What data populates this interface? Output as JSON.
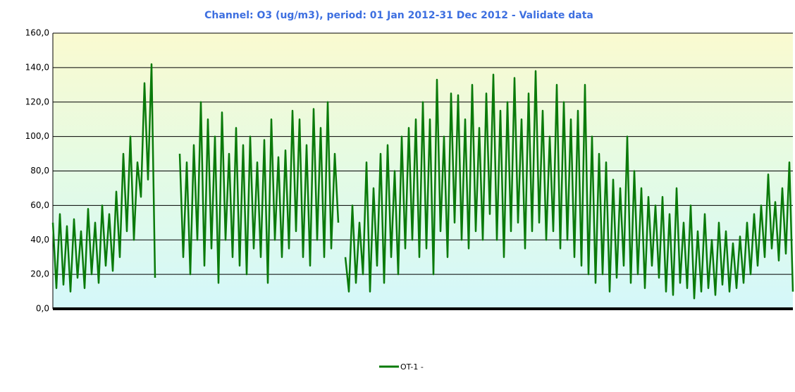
{
  "chart_data": {
    "type": "line",
    "title": "Channel: O3 (ug/m3), period: 01 Jan 2012-31 Dec 2012 - Validate data",
    "ylim": [
      0,
      160
    ],
    "yticks": [
      {
        "value": 0,
        "label": "0,0"
      },
      {
        "value": 20,
        "label": "20,0"
      },
      {
        "value": 40,
        "label": "40,0"
      },
      {
        "value": 60,
        "label": "60,0"
      },
      {
        "value": 80,
        "label": "80,0"
      },
      {
        "value": 100,
        "label": "100,0"
      },
      {
        "value": 120,
        "label": "120,0"
      },
      {
        "value": 140,
        "label": "140,0"
      },
      {
        "value": 160,
        "label": "160,0"
      }
    ],
    "grid": true,
    "legend": "bottom",
    "series": [
      {
        "name": "OT-1 -",
        "color": "#0a7a0a",
        "values": [
          50,
          12,
          55,
          14,
          48,
          10,
          52,
          18,
          45,
          12,
          58,
          20,
          50,
          15,
          60,
          25,
          55,
          22,
          68,
          30,
          90,
          45,
          100,
          40,
          85,
          65,
          131,
          75,
          142,
          18,
          null,
          null,
          null,
          null,
          null,
          null,
          90,
          30,
          85,
          20,
          95,
          40,
          120,
          25,
          110,
          35,
          100,
          15,
          114,
          40,
          90,
          30,
          105,
          25,
          95,
          20,
          100,
          35,
          85,
          30,
          98,
          15,
          110,
          40,
          88,
          30,
          92,
          35,
          115,
          45,
          110,
          30,
          95,
          25,
          116,
          40,
          105,
          30,
          120,
          35,
          90,
          50,
          null,
          30,
          10,
          60,
          15,
          50,
          20,
          85,
          10,
          70,
          25,
          90,
          15,
          95,
          30,
          80,
          20,
          100,
          35,
          105,
          40,
          110,
          30,
          120,
          35,
          110,
          20,
          133,
          45,
          100,
          30,
          125,
          50,
          124,
          40,
          110,
          35,
          130,
          45,
          105,
          40,
          125,
          55,
          136,
          40,
          115,
          30,
          120,
          45,
          134,
          50,
          110,
          35,
          125,
          45,
          138,
          50,
          115,
          40,
          100,
          45,
          130,
          35,
          120,
          40,
          110,
          30,
          115,
          25,
          130,
          20,
          100,
          15,
          90,
          20,
          85,
          10,
          75,
          18,
          70,
          25,
          100,
          15,
          80,
          20,
          70,
          12,
          65,
          25,
          60,
          18,
          65,
          10,
          55,
          8,
          70,
          15,
          50,
          12,
          60,
          6,
          45,
          10,
          55,
          12,
          40,
          8,
          50,
          14,
          45,
          10,
          38,
          12,
          42,
          15,
          50,
          20,
          55,
          25,
          60,
          30,
          78,
          35,
          62,
          28,
          70,
          32,
          85,
          10
        ]
      }
    ]
  }
}
